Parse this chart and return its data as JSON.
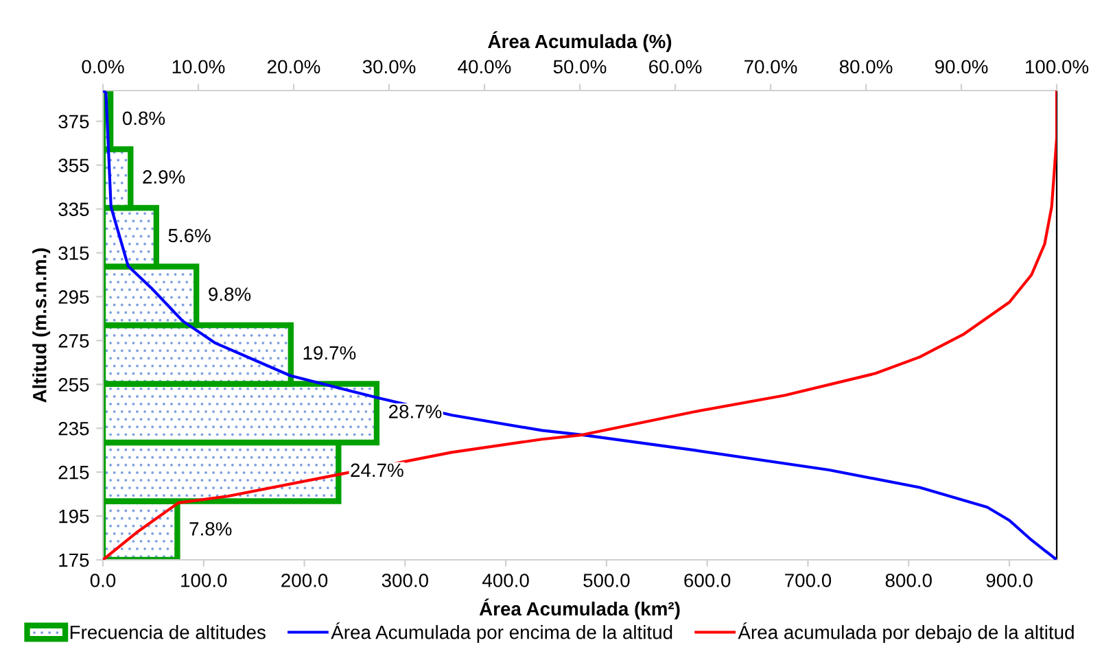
{
  "chart_data": {
    "type": "histogram",
    "orientation": "horizontal",
    "xlabel": "Área Acumulada (km²)",
    "x2label": "Área Acumulada (%)",
    "ylabel": "Altitud (m.s.n.m.)",
    "xlim": [
      0,
      947
    ],
    "xticks": [
      {
        "value": 0,
        "label": "0.0"
      },
      {
        "value": 100,
        "label": "100.0"
      },
      {
        "value": 200,
        "label": "200.0"
      },
      {
        "value": 300,
        "label": "300.0"
      },
      {
        "value": 400,
        "label": "400.0"
      },
      {
        "value": 500,
        "label": "500.0"
      },
      {
        "value": 600,
        "label": "600.0"
      },
      {
        "value": 700,
        "label": "700.0"
      },
      {
        "value": 800,
        "label": "800.0"
      },
      {
        "value": 900,
        "label": "900.0"
      }
    ],
    "x2lim": [
      0,
      100
    ],
    "x2ticks": [
      {
        "value": 0,
        "label": "0.0%"
      },
      {
        "value": 10,
        "label": "10.0%"
      },
      {
        "value": 20,
        "label": "20.0%"
      },
      {
        "value": 30,
        "label": "30.0%"
      },
      {
        "value": 40,
        "label": "40.0%"
      },
      {
        "value": 50,
        "label": "50.0%"
      },
      {
        "value": 60,
        "label": "60.0%"
      },
      {
        "value": 70,
        "label": "70.0%"
      },
      {
        "value": 80,
        "label": "80.0%"
      },
      {
        "value": 90,
        "label": "90.0%"
      },
      {
        "value": 100,
        "label": "100.0%"
      }
    ],
    "ylim": [
      175,
      389
    ],
    "yticks": [
      175,
      195,
      215,
      235,
      255,
      275,
      295,
      315,
      335,
      355,
      375
    ],
    "grid": false,
    "legend": "bottom",
    "series": [
      {
        "name": "Frecuencia de altitudes",
        "type": "histogram",
        "axis": "x2",
        "color": "#00a000",
        "bins": [
          175,
          201.75,
          228.5,
          255.25,
          282,
          308.75,
          335.5,
          362.25,
          389
        ],
        "values": [
          7.8,
          24.7,
          28.7,
          19.7,
          9.8,
          5.6,
          2.9,
          0.8
        ],
        "value_labels": [
          "7.8%",
          "24.7%",
          "28.7%",
          "19.7%",
          "9.8%",
          "5.6%",
          "2.9%",
          "0.8%"
        ]
      },
      {
        "name": "Área Acumulada por encima de la altitud",
        "type": "line",
        "color": "#0000ff",
        "x": [
          389,
          388,
          336,
          309,
          299,
          284,
          274,
          259,
          249,
          241,
          234,
          232,
          225,
          216,
          208,
          199,
          193,
          184,
          175
        ],
        "values": [
          0,
          3,
          8,
          25,
          48,
          79,
          111,
          186,
          272,
          346,
          436,
          476,
          587,
          721,
          811,
          878,
          900,
          922,
          947
        ]
      },
      {
        "name": "Área acumulada por debajo de la altitud",
        "type": "line",
        "color": "#ff0000",
        "x": [
          175,
          188,
          201,
          204,
          214,
          224,
          230,
          232,
          242.5,
          250,
          260,
          267.5,
          278,
          292.5,
          305,
          319,
          336,
          367.5,
          389
        ],
        "values": [
          0,
          35,
          75,
          124,
          235,
          346,
          436,
          476,
          587,
          677,
          767,
          811,
          855,
          900,
          922,
          935,
          942,
          947,
          947
        ]
      }
    ]
  }
}
